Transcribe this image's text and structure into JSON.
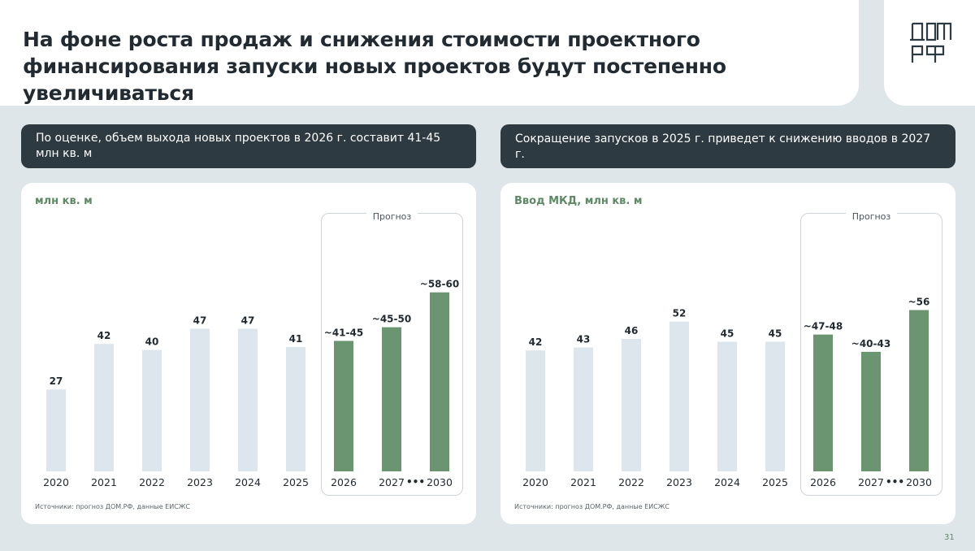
{
  "title": "На фоне роста продаж и снижения стоимости проектного финансирования запуски новых проектов будут постепенно увеличиваться",
  "logo": {
    "line1": "ДОМ",
    "line2": "РФ"
  },
  "colors": {
    "actual": "#dde6ec",
    "forecast": "#6b9470",
    "accent_text": "#5d8a65",
    "callout_bg": "#2d3a41"
  },
  "page_number": "31",
  "left": {
    "callout": "По оценке, объем выхода новых проектов в 2026 г. составит 41-45 млн кв. м",
    "source": "Источники: прогноз ДОМ.РФ, данные ЕИСЖС"
  },
  "right": {
    "callout": "Сокращение запусков в 2025 г. приведет к снижению вводов в 2027 г.",
    "source": "Источники: прогноз ДОМ.РФ, данные ЕИСЖС"
  },
  "chart_data": [
    {
      "type": "bar",
      "title": "",
      "ylabel": "млн кв. м",
      "forecast_label": "Прогноз",
      "categories": [
        "2020",
        "2021",
        "2022",
        "2023",
        "2024",
        "2025",
        "2026",
        "2027",
        "2030"
      ],
      "values": [
        27,
        42,
        40,
        47,
        47,
        41,
        43,
        47.5,
        59
      ],
      "labels": [
        "27",
        "42",
        "40",
        "47",
        "47",
        "41",
        "~41-45",
        "~45-50",
        "~58-60"
      ],
      "forecast": [
        false,
        false,
        false,
        false,
        false,
        false,
        true,
        true,
        true
      ],
      "ellipsis": "•••",
      "ylim": [
        0,
        75
      ]
    },
    {
      "type": "bar",
      "title": "",
      "ylabel": "Ввод МКД, млн кв. м",
      "forecast_label": "Прогноз",
      "categories": [
        "2020",
        "2021",
        "2022",
        "2023",
        "2024",
        "2025",
        "2026",
        "2027",
        "2030"
      ],
      "values": [
        42,
        43,
        46,
        52,
        45,
        45,
        47.5,
        41.5,
        56
      ],
      "labels": [
        "42",
        "43",
        "46",
        "52",
        "45",
        "45",
        "~47-48",
        "~40-43",
        "~56"
      ],
      "forecast": [
        false,
        false,
        false,
        false,
        false,
        false,
        true,
        true,
        true
      ],
      "ellipsis": "•••",
      "ylim": [
        0,
        79
      ]
    }
  ]
}
